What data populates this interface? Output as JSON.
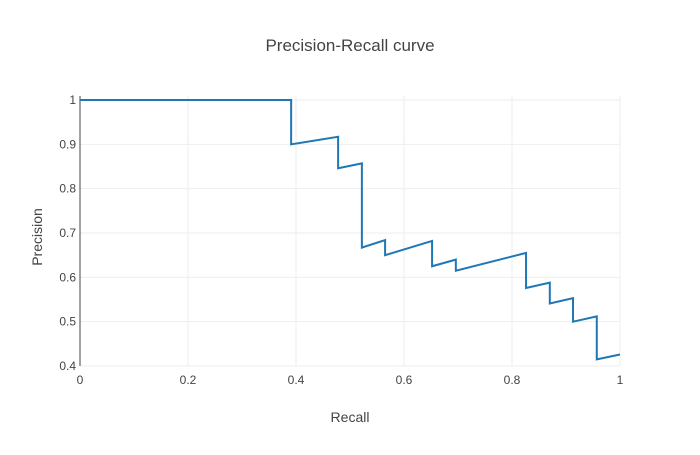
{
  "chart_data": {
    "type": "line",
    "title": "Precision-Recall curve",
    "xlabel": "Recall",
    "ylabel": "Precision",
    "xlim": [
      0,
      1
    ],
    "ylim": [
      0.4,
      1.0
    ],
    "x_ticks": [
      0,
      0.2,
      0.4,
      0.6,
      0.8,
      1
    ],
    "x_tick_labels": [
      "0",
      "0.2",
      "0.4",
      "0.6",
      "0.8",
      "1"
    ],
    "y_ticks": [
      0.4,
      0.5,
      0.6,
      0.7,
      0.8,
      0.9,
      1.0
    ],
    "y_tick_labels": [
      "0.4",
      "0.5",
      "0.6",
      "0.7",
      "0.8",
      "0.9",
      "1"
    ],
    "grid": true,
    "line_color": "#1f77b4",
    "series": [
      {
        "x": [
          0,
          0.391,
          0.391,
          0.478,
          0.478,
          0.522,
          0.522,
          0.565,
          0.565,
          0.652,
          0.652,
          0.696,
          0.696,
          0.826,
          0.826,
          0.87,
          0.87,
          0.913,
          0.913,
          0.957,
          0.957,
          1.0
        ],
        "y": [
          1.0,
          1.0,
          0.9,
          0.917,
          0.846,
          0.857,
          0.667,
          0.684,
          0.65,
          0.682,
          0.625,
          0.64,
          0.615,
          0.655,
          0.576,
          0.588,
          0.541,
          0.553,
          0.5,
          0.512,
          0.415,
          0.426
        ]
      }
    ]
  }
}
